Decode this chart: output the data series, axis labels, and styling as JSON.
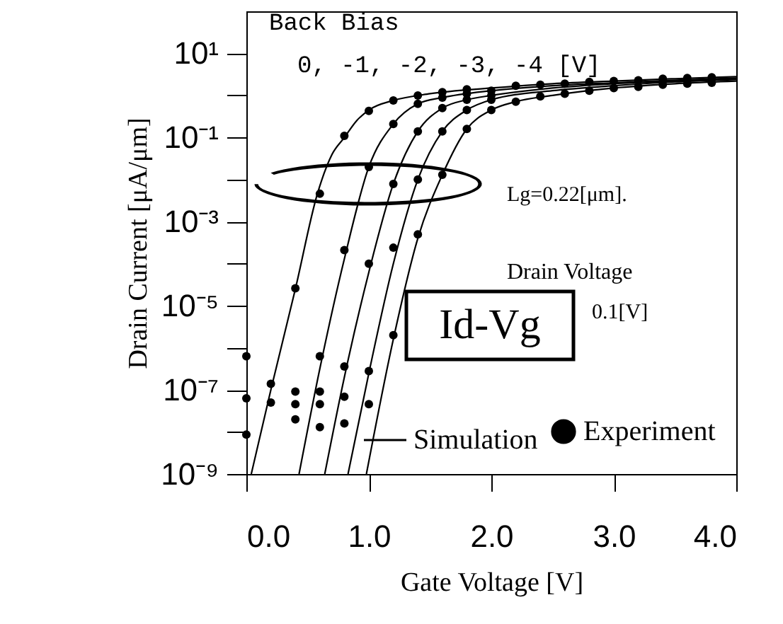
{
  "chart_data": {
    "type": "scatter",
    "xlabel": "Gate Voltage [V]",
    "ylabel": "Drain Current [μA/μm]",
    "xlim": [
      0,
      4
    ],
    "xticks": [
      {
        "value": 0,
        "label": "0.0"
      },
      {
        "value": 1,
        "label": "1.0"
      },
      {
        "value": 2,
        "label": "2.0"
      },
      {
        "value": 3,
        "label": "3.0"
      },
      {
        "value": 4,
        "label": "4.0"
      }
    ],
    "ylim": [
      1e-09,
      100
    ],
    "yticks": [
      {
        "value": 1e-09,
        "label": "10⁻⁹"
      },
      {
        "value": 1e-08,
        "label": null
      },
      {
        "value": 1e-07,
        "label": "10⁻⁷"
      },
      {
        "value": 1e-06,
        "label": null
      },
      {
        "value": 1e-05,
        "label": "10⁻⁵"
      },
      {
        "value": 0.0001,
        "label": null
      },
      {
        "value": 0.001,
        "label": "10⁻³"
      },
      {
        "value": 0.01,
        "label": null
      },
      {
        "value": 0.1,
        "label": "10⁻¹"
      },
      {
        "value": 1,
        "label": null
      },
      {
        "value": 10,
        "label": "10¹"
      }
    ],
    "log": true,
    "legend": "bottom right",
    "annotations": [
      "Back Bias",
      "0, -1, -2, -3, -4 [V]",
      "Lg=0.22[μm].",
      "Drain Voltage",
      "0.1[V]",
      "Id-Vg"
    ],
    "series": [
      {
        "name": "Experiment",
        "color": "#000000",
        "marker": "circle",
        "x": [
          0,
          0.2,
          0.4,
          0.6,
          0.8,
          1.0,
          1.2,
          1.4,
          1.6,
          1.8,
          2.2,
          2.4,
          2.6,
          2.8,
          3.0,
          3.2,
          3.4,
          3.6,
          3.8
        ],
        "values": [
          6.3e-07,
          1.4e-07,
          2.6e-05,
          0.0046,
          0.11,
          0.43,
          0.76,
          1,
          1.2,
          1.4,
          1.7,
          1.8,
          1.9,
          2.1,
          2.2,
          2.3,
          2.5,
          2.6,
          2.7
        ]
      },
      {
        "color": "#000000",
        "marker": "circle",
        "x": [
          0,
          0.2,
          0.4,
          0.6,
          0.8,
          1.0,
          1.2,
          1.4,
          1.6,
          1.8,
          2.0
        ],
        "values": [
          6.3e-08,
          5e-08,
          9.1e-08,
          6.3e-07,
          0.00021,
          0.02,
          0.21,
          0.63,
          0.89,
          1.1,
          1.3
        ]
      },
      {
        "color": "#000000",
        "marker": "circle",
        "x": [
          0,
          0.4,
          0.6,
          0.8,
          1.0,
          1.2,
          1.4,
          1.6,
          1.8,
          2.0
        ],
        "values": [
          8.7e-09,
          4.6e-08,
          9.1e-08,
          3.6e-07,
          0.0001,
          0.0079,
          0.14,
          0.5,
          0.79,
          1.0
        ]
      },
      {
        "color": "#000000",
        "marker": "circle",
        "x": [
          0.4,
          0.6,
          0.8,
          1.0,
          1.2,
          1.4,
          1.6,
          1.8,
          2.0
        ],
        "values": [
          2e-08,
          4.6e-08,
          6.9e-08,
          2.8e-07,
          0.00024,
          0.01,
          0.14,
          0.45,
          0.79
        ]
      },
      {
        "color": "#000000",
        "marker": "circle",
        "x": [
          0.6,
          0.8,
          1.0,
          1.2,
          1.4,
          1.6,
          1.8,
          2.0,
          2.2,
          2.4,
          2.6,
          2.8,
          3.0,
          3.2,
          3.4,
          3.6,
          3.8
        ],
        "values": [
          1.3e-08,
          1.6e-08,
          4.6e-08,
          2e-06,
          0.0005,
          0.013,
          0.16,
          0.45,
          0.71,
          0.95,
          1.1,
          1.3,
          1.5,
          1.6,
          1.8,
          1.9,
          2.0
        ]
      },
      {
        "type": "line",
        "name": "Simulation",
        "color": "#000000",
        "line_style": "solid",
        "x": [
          0.04,
          0.2,
          0.4,
          0.58,
          0.7,
          0.8,
          0.9,
          1.0,
          1.2,
          1.5,
          2.0,
          2.5,
          3.0,
          3.5,
          4.0
        ],
        "values": [
          1e-09,
          1e-07,
          2.5e-05,
          0.0046,
          0.04,
          0.1,
          0.25,
          0.45,
          0.76,
          1.1,
          1.5,
          1.9,
          2.2,
          2.5,
          2.8
        ]
      },
      {
        "type": "line",
        "color": "#000000",
        "line_style": "solid",
        "x": [
          0.43,
          0.6,
          0.8,
          1.0,
          1.2,
          1.4,
          1.6,
          2.0,
          2.5,
          3.0,
          3.5,
          4.0
        ],
        "values": [
          1e-09,
          3.2e-07,
          0.00013,
          0.02,
          0.21,
          0.63,
          0.89,
          1.3,
          1.7,
          2.0,
          2.3,
          2.6
        ]
      },
      {
        "type": "line",
        "color": "#000000",
        "line_style": "solid",
        "x": [
          0.64,
          0.8,
          1.0,
          1.2,
          1.4,
          1.6,
          1.8,
          2.0,
          2.5,
          3.0,
          3.5,
          4.0
        ],
        "values": [
          1e-09,
          2e-07,
          6.3e-05,
          0.0079,
          0.14,
          0.5,
          0.79,
          1.0,
          1.5,
          1.9,
          2.2,
          2.5
        ]
      },
      {
        "type": "line",
        "color": "#000000",
        "line_style": "solid",
        "x": [
          0.83,
          1.0,
          1.2,
          1.4,
          1.6,
          1.8,
          2.0,
          2.5,
          3.0,
          3.5,
          4.0
        ],
        "values": [
          1e-09,
          2.5e-07,
          0.0001,
          0.01,
          0.14,
          0.45,
          0.79,
          1.3,
          1.7,
          2.1,
          2.4
        ]
      },
      {
        "type": "line",
        "color": "#000000",
        "line_style": "solid",
        "x": [
          0.98,
          1.2,
          1.4,
          1.6,
          1.8,
          2.0,
          2.2,
          2.5,
          3.0,
          3.5,
          4.0
        ],
        "values": [
          1e-09,
          1.6e-06,
          0.0004,
          0.013,
          0.16,
          0.45,
          0.71,
          1.0,
          1.5,
          1.9,
          2.2
        ]
      }
    ]
  }
}
